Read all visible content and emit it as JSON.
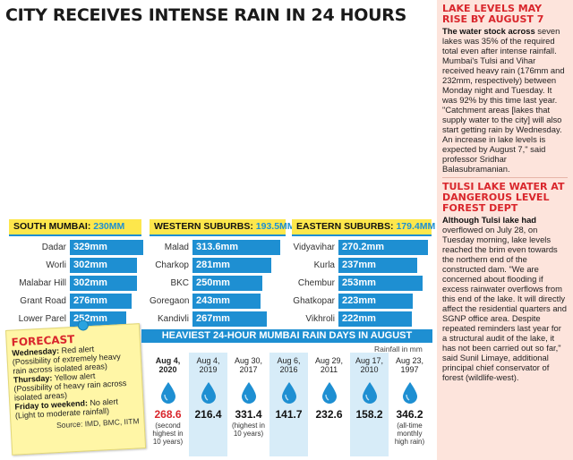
{
  "headline": "CITY RECEIVES INTENSE RAIN IN 24 HOURS",
  "colors": {
    "accent_blue": "#1e8fd2",
    "header_yellow": "#fde74c",
    "alert_red": "#d9262c",
    "sidebar_bg": "#fde4dc"
  },
  "regions": [
    {
      "name": "SOUTH MUMBAI:",
      "total": "230MM",
      "items": [
        {
          "label": "Dadar",
          "value": "329mm",
          "mm": 329
        },
        {
          "label": "Worli",
          "value": "302mm",
          "mm": 302
        },
        {
          "label": "Malabar Hill",
          "value": "302mm",
          "mm": 302
        },
        {
          "label": "Grant Road",
          "value": "276mm",
          "mm": 276
        },
        {
          "label": "Lower Parel",
          "value": "252mm",
          "mm": 252
        }
      ]
    },
    {
      "name": "WESTERN SUBURBS:",
      "total": "193.5MM",
      "items": [
        {
          "label": "Malad",
          "value": "313.6mm",
          "mm": 313.6
        },
        {
          "label": "Charkop",
          "value": "281mm",
          "mm": 281
        },
        {
          "label": "BKC",
          "value": "250mm",
          "mm": 250
        },
        {
          "label": "Goregaon",
          "value": "243mm",
          "mm": 243
        },
        {
          "label": "Kandivli",
          "value": "267mm",
          "mm": 267
        }
      ]
    },
    {
      "name": "EASTERN SUBURBS:",
      "total": "179.4MM",
      "items": [
        {
          "label": "Vidyavihar",
          "value": "270.2mm",
          "mm": 270.2
        },
        {
          "label": "Kurla",
          "value": "237mm",
          "mm": 237
        },
        {
          "label": "Chembur",
          "value": "253mm",
          "mm": 253
        },
        {
          "label": "Ghatkopar",
          "value": "223mm",
          "mm": 223
        },
        {
          "label": "Vikhroli",
          "value": "222mm",
          "mm": 222
        }
      ]
    }
  ],
  "forecast": {
    "title": "FORECAST",
    "lines": [
      {
        "day": "Wednesday:",
        "text": " Red alert"
      },
      {
        "day": "",
        "text": "(Possibility of extremely heavy rain across isolated areas)"
      },
      {
        "day": "Thursday:",
        "text": " Yellow alert"
      },
      {
        "day": "",
        "text": "(Possibility of heavy rain across isolated areas)"
      },
      {
        "day": "Friday to weekend:",
        "text": " No alert"
      },
      {
        "day": "",
        "text": "(Light to moderate rainfall)"
      }
    ],
    "source": "Source: IMD, BMC, IITM"
  },
  "heaviest": {
    "banner": "HEAVIEST 24-HOUR MUMBAI RAIN DAYS IN AUGUST",
    "unit": "Rainfall in mm",
    "days": [
      {
        "date": "Aug 4, 2020",
        "value": "268.6",
        "note": "(second highest in 10 years)",
        "shaded": false,
        "highlight": true
      },
      {
        "date": "Aug 4, 2019",
        "value": "216.4",
        "note": "",
        "shaded": true,
        "highlight": false
      },
      {
        "date": "Aug 30, 2017",
        "value": "331.4",
        "note": "(highest in 10 years)",
        "shaded": false,
        "highlight": false
      },
      {
        "date": "Aug 6, 2016",
        "value": "141.7",
        "note": "",
        "shaded": true,
        "highlight": false
      },
      {
        "date": "Aug 29, 2011",
        "value": "232.6",
        "note": "",
        "shaded": false,
        "highlight": false
      },
      {
        "date": "Aug 17, 2010",
        "value": "158.2",
        "note": "",
        "shaded": true,
        "highlight": false
      },
      {
        "date": "Aug 23, 1997",
        "value": "346.2",
        "note": "(all-time monthly high rain)",
        "shaded": false,
        "highlight": false
      }
    ]
  },
  "sidebar": {
    "story1": {
      "headline": "LAKE LEVELS MAY RISE BY AUGUST 7",
      "lead": "The water stock across",
      "body": " seven lakes was 35% of the required total even after intense rainfall. Mumbai's Tulsi and Vihar received heavy rain (176mm and 232mm, respectively) between Monday night and Tuesday. It was 92% by this time last year. \"Catchment areas [lakes that supply water to the city] will also start getting rain by Wednesday. An increase in lake levels is expected by August 7,\" said professor Sridhar Balasubramanian."
    },
    "story2": {
      "headline": "TULSI LAKE WATER AT DANGEROUS LEVEL FOREST DEPT",
      "lead": "Although Tulsi lake had",
      "body": " overflowed on July 28, on Tuesday morning, lake levels reached the brim even towards the northern end of the constructed dam. \"We are concerned about flooding if excess rainwater overflows from this end of the lake. It will directly affect the residential quarters and SGNP office area. Despite repeated reminders last year for a structural audit of the lake, it has not been carried out so far,\" said Sunil Limaye, additional principal chief conservator of forest (wildlife-west)."
    }
  }
}
